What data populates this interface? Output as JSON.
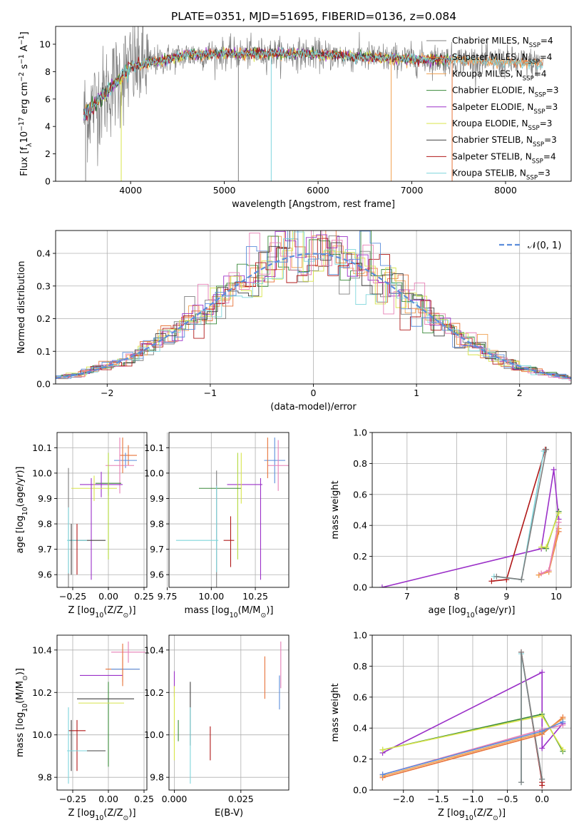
{
  "figure_title": "PLATE=0351, MJD=51695, FIBERID=0136, z=0.084",
  "chart_data": [
    {
      "id": "spectrum",
      "type": "line",
      "title": "PLATE=0351, MJD=51695, FIBERID=0136, z=0.084",
      "xlabel": "wavelength [Angstrom, rest frame]",
      "ylabel": "Flux [fλ10⁻¹⁷ erg cm⁻² s⁻¹ A⁻¹]",
      "xlim": [
        3200,
        8700
      ],
      "ylim": [
        0,
        11.3
      ],
      "xticks": [
        4000,
        5000,
        6000,
        7000,
        8000
      ],
      "yticks": [
        0,
        2,
        4,
        6,
        8,
        10
      ],
      "grid": false,
      "legend_position": "top-right",
      "series": [
        {
          "name": "Chabrier MILES, N_SSP=4",
          "color": "#7f7f7f"
        },
        {
          "name": "Salpeter MILES, N_SSP=4",
          "color": "#e8733a"
        },
        {
          "name": "Kroupa MILES, N_SSP=4",
          "color": "#f0a050"
        },
        {
          "name": "Chabrier ELODIE, N_SSP=3",
          "color": "#3a8a3a"
        },
        {
          "name": "Salpeter ELODIE, N_SSP=3",
          "color": "#9b30c8"
        },
        {
          "name": "Kroupa ELODIE, N_SSP=3",
          "color": "#d8e44a"
        },
        {
          "name": "Chabrier STELIB, N_SSP=3",
          "color": "#404040"
        },
        {
          "name": "Salpeter STELIB, N_SSP=4",
          "color": "#b01818"
        },
        {
          "name": "Kroupa STELIB, N_SSP=3",
          "color": "#7fd6dc"
        }
      ],
      "continuum": {
        "x": [
          3500,
          3700,
          3900,
          4000,
          4300,
          4600,
          4900,
          5200,
          5500,
          5800,
          6100,
          6400,
          6700,
          7000,
          7300,
          7600,
          8000,
          8400
        ],
        "y": [
          4.8,
          6.2,
          7.6,
          8.3,
          8.8,
          9.2,
          9.3,
          9.3,
          9.35,
          9.3,
          9.2,
          9.1,
          9.0,
          8.9,
          8.9,
          8.8,
          8.7,
          8.6
        ]
      }
    },
    {
      "id": "residuals",
      "type": "histogram",
      "xlabel": "(data-model)/error",
      "ylabel": "Normed distribution",
      "xlim": [
        -2.5,
        2.5
      ],
      "ylim": [
        0,
        0.47
      ],
      "xticks": [
        -2,
        -1,
        0,
        1,
        2
      ],
      "yticks": [
        0.0,
        0.1,
        0.2,
        0.3,
        0.4
      ],
      "grid": true,
      "legend_position": "top-right",
      "reference_curve": {
        "name": "𝒩(0, 1)",
        "color": "#5b8ddb",
        "style": "dashed"
      }
    },
    {
      "id": "age-vs-Z",
      "type": "errorbar",
      "xlabel": "Z [log10(Z/Z⊙)]",
      "ylabel": "age  [log10(age/yr)]",
      "xlim": [
        -0.36,
        0.27
      ],
      "ylim": [
        9.55,
        10.16
      ],
      "xticks": [
        -0.25,
        0.0,
        0.25
      ],
      "yticks": [
        9.6,
        9.7,
        9.8,
        9.9,
        10.0,
        10.1
      ],
      "grid": true,
      "points": [
        {
          "x": 0.14,
          "y": 10.07,
          "xerr": 0.06,
          "yerr": 0.04,
          "color": "#e8733a"
        },
        {
          "x": 0.12,
          "y": 10.05,
          "xerr": 0.08,
          "yerr": 0.03,
          "color": "#5b8ddb"
        },
        {
          "x": 0.08,
          "y": 10.03,
          "xerr": 0.1,
          "yerr": 0.11,
          "color": "#e67fb5"
        },
        {
          "x": 0.0,
          "y": 9.96,
          "xerr": 0.09,
          "yerr": 0.05,
          "color": "#3a8a3a"
        },
        {
          "x": -0.05,
          "y": 9.955,
          "xerr": 0.15,
          "yerr": 0.05,
          "color": "#9b30c8"
        },
        {
          "x": -0.1,
          "y": 9.94,
          "xerr": 0.16,
          "yerr": 0.05,
          "color": "#d8e44a"
        },
        {
          "x": 0.0,
          "y": 9.87,
          "xerr": 0.0,
          "yerr": 0.21,
          "color": "#b0d838"
        },
        {
          "x": -0.12,
          "y": 9.78,
          "xerr": 0.0,
          "yerr": 0.2,
          "color": "#9b30c8"
        },
        {
          "x": -0.15,
          "y": 9.735,
          "xerr": 0.13,
          "yerr": 0.0,
          "color": "#404040"
        },
        {
          "x": -0.28,
          "y": 9.78,
          "xerr": 0.0,
          "yerr": 0.24,
          "color": "#7f7f7f"
        },
        {
          "x": -0.28,
          "y": 9.735,
          "xerr": 0.0,
          "yerr": 0.13,
          "color": "#7fd6dc"
        },
        {
          "x": -0.22,
          "y": 9.735,
          "xerr": 0.07,
          "yerr": 0.0,
          "color": "#7fd6dc"
        },
        {
          "x": -0.26,
          "y": 9.7,
          "xerr": 0.0,
          "yerr": 0.1,
          "color": "#404040"
        },
        {
          "x": -0.22,
          "y": 9.7,
          "xerr": 0.0,
          "yerr": 0.1,
          "color": "#b01818"
        },
        {
          "x": 0.1,
          "y": 10.07,
          "xerr": 0.0,
          "yerr": 0.07,
          "color": "#e8733a"
        }
      ]
    },
    {
      "id": "age-vs-mass",
      "type": "errorbar",
      "xlabel": "mass [log10(M/M⊙)]",
      "ylabel": "",
      "xlim": [
        9.76,
        10.44
      ],
      "ylim": [
        9.55,
        10.16
      ],
      "xticks": [
        9.75,
        10.0,
        10.25
      ],
      "yticks": [
        9.6,
        9.7,
        9.8,
        9.9,
        10.0,
        10.1
      ],
      "grid": true,
      "points": [
        {
          "x": 10.36,
          "y": 10.05,
          "xerr": 0.06,
          "yerr": 0.09,
          "color": "#5b8ddb"
        },
        {
          "x": 10.38,
          "y": 10.03,
          "xerr": 0.06,
          "yerr": 0.1,
          "color": "#e67fb5"
        },
        {
          "x": 10.32,
          "y": 10.06,
          "xerr": 0.0,
          "yerr": 0.08,
          "color": "#e8733a"
        },
        {
          "x": 10.19,
          "y": 9.955,
          "xerr": 0.1,
          "yerr": 0.0,
          "color": "#9b30c8"
        },
        {
          "x": 10.28,
          "y": 9.78,
          "xerr": 0.0,
          "yerr": 0.2,
          "color": "#9b30c8"
        },
        {
          "x": 10.15,
          "y": 9.87,
          "xerr": 0.0,
          "yerr": 0.21,
          "color": "#b0d838"
        },
        {
          "x": 10.05,
          "y": 9.94,
          "xerr": 0.12,
          "yerr": 0.0,
          "color": "#3a8a3a"
        },
        {
          "x": 10.17,
          "y": 9.98,
          "xerr": 0.0,
          "yerr": 0.1,
          "color": "#d8e44a"
        },
        {
          "x": 10.03,
          "y": 9.78,
          "xerr": 0.0,
          "yerr": 0.23,
          "color": "#7f7f7f"
        },
        {
          "x": 10.03,
          "y": 9.78,
          "xerr": 0.0,
          "yerr": 0.17,
          "color": "#7fd6dc"
        },
        {
          "x": 9.92,
          "y": 9.735,
          "xerr": 0.12,
          "yerr": 0.0,
          "color": "#7fd6dc"
        },
        {
          "x": 10.1,
          "y": 9.735,
          "xerr": 0.03,
          "yerr": 0.0,
          "color": "#b01818"
        },
        {
          "x": 10.11,
          "y": 9.73,
          "xerr": 0.0,
          "yerr": 0.1,
          "color": "#b01818"
        }
      ]
    },
    {
      "id": "massweight-vs-age",
      "type": "line",
      "xlabel": "age  [log10(age/yr)]",
      "ylabel": "mass weight",
      "xlim": [
        6.3,
        10.3
      ],
      "ylim": [
        0,
        1.0
      ],
      "xticks": [
        7,
        8,
        9,
        10
      ],
      "yticks": [
        0.0,
        0.2,
        0.4,
        0.6,
        0.8,
        1.0
      ],
      "grid": true,
      "series": [
        {
          "color": "#9b30c8",
          "x": [
            6.5,
            9.7,
            9.95,
            10.05
          ],
          "y": [
            0.0,
            0.25,
            0.76,
            0.44
          ]
        },
        {
          "color": "#b01818",
          "x": [
            8.7,
            9.0,
            9.78
          ],
          "y": [
            0.04,
            0.05,
            0.89
          ]
        },
        {
          "color": "#7fd6dc",
          "x": [
            8.75,
            9.3,
            9.75
          ],
          "y": [
            0.07,
            0.05,
            0.88
          ]
        },
        {
          "color": "#7f7f7f",
          "x": [
            8.8,
            9.3,
            9.8
          ],
          "y": [
            0.07,
            0.05,
            0.89
          ]
        },
        {
          "color": "#3a8a3a",
          "x": [
            9.7,
            9.8,
            10.05
          ],
          "y": [
            0.26,
            0.25,
            0.49
          ]
        },
        {
          "color": "#d8e44a",
          "x": [
            9.7,
            9.8,
            10.05
          ],
          "y": [
            0.26,
            0.26,
            0.48
          ]
        },
        {
          "color": "#e8733a",
          "x": [
            9.65,
            9.85,
            10.05
          ],
          "y": [
            0.08,
            0.1,
            0.36
          ]
        },
        {
          "color": "#f0a050",
          "x": [
            9.65,
            9.85,
            10.05
          ],
          "y": [
            0.08,
            0.1,
            0.38
          ]
        },
        {
          "color": "#e67fb5",
          "x": [
            9.7,
            9.85,
            10.05
          ],
          "y": [
            0.09,
            0.11,
            0.42
          ]
        }
      ]
    },
    {
      "id": "mass-vs-Z",
      "type": "errorbar",
      "xlabel": "Z [log10(Z/Z⊙)]",
      "ylabel": "mass [log10(M/M⊙)]",
      "xlim": [
        -0.36,
        0.27
      ],
      "ylim": [
        9.74,
        10.47
      ],
      "xticks": [
        -0.25,
        0.0,
        0.25
      ],
      "yticks": [
        9.8,
        10.0,
        10.2,
        10.4
      ],
      "grid": true,
      "points": [
        {
          "x": 0.14,
          "y": 10.39,
          "xerr": 0.12,
          "yerr": 0.05,
          "color": "#e67fb5"
        },
        {
          "x": 0.1,
          "y": 10.31,
          "xerr": 0.12,
          "yerr": 0.06,
          "color": "#e8733a"
        },
        {
          "x": 0.12,
          "y": 10.31,
          "xerr": 0.1,
          "yerr": 0.0,
          "color": "#5b8ddb"
        },
        {
          "x": -0.05,
          "y": 10.28,
          "xerr": 0.15,
          "yerr": 0.0,
          "color": "#9b30c8"
        },
        {
          "x": 0.0,
          "y": 10.05,
          "xerr": 0.0,
          "yerr": 0.2,
          "color": "#3a8a3a"
        },
        {
          "x": -0.02,
          "y": 10.17,
          "xerr": 0.2,
          "yerr": 0.0,
          "color": "#404040"
        },
        {
          "x": -0.05,
          "y": 10.15,
          "xerr": 0.16,
          "yerr": 0.0,
          "color": "#d8e44a"
        },
        {
          "x": -0.22,
          "y": 10.02,
          "xerr": 0.06,
          "yerr": 0.0,
          "color": "#b01818"
        },
        {
          "x": -0.26,
          "y": 9.95,
          "xerr": 0.0,
          "yerr": 0.12,
          "color": "#404040"
        },
        {
          "x": -0.22,
          "y": 9.95,
          "xerr": 0.0,
          "yerr": 0.12,
          "color": "#b01818"
        },
        {
          "x": -0.28,
          "y": 9.95,
          "xerr": 0.0,
          "yerr": 0.18,
          "color": "#7fd6dc"
        },
        {
          "x": -0.15,
          "y": 9.925,
          "xerr": 0.13,
          "yerr": 0.0,
          "color": "#404040"
        },
        {
          "x": -0.22,
          "y": 9.925,
          "xerr": 0.07,
          "yerr": 0.0,
          "color": "#7fd6dc"
        },
        {
          "x": 0.1,
          "y": 10.33,
          "xerr": 0.0,
          "yerr": 0.1,
          "color": "#e8733a"
        }
      ]
    },
    {
      "id": "mass-vs-EBV",
      "type": "errorbar",
      "xlabel": "E(B-V)",
      "ylabel": "",
      "xlim": [
        -0.002,
        0.043
      ],
      "ylim": [
        9.74,
        10.47
      ],
      "xticks": [
        0.0,
        0.025
      ],
      "yticks": [
        9.8,
        10.0,
        10.2,
        10.4
      ],
      "grid": true,
      "points": [
        {
          "x": 0.0,
          "y": 10.24,
          "xerr": 0.0,
          "yerr": 0.06,
          "color": "#9b30c8"
        },
        {
          "x": 0.0,
          "y": 10.1,
          "xerr": 0.0,
          "yerr": 0.13,
          "color": "#d8e44a"
        },
        {
          "x": 0.0,
          "y": 9.95,
          "xerr": 0.0,
          "yerr": 0.07,
          "color": "#d8e44a"
        },
        {
          "x": 0.0015,
          "y": 10.02,
          "xerr": 0.0,
          "yerr": 0.05,
          "color": "#3a8a3a"
        },
        {
          "x": 0.006,
          "y": 10.1,
          "xerr": 0.0,
          "yerr": 0.15,
          "color": "#404040"
        },
        {
          "x": 0.006,
          "y": 9.95,
          "xerr": 0.0,
          "yerr": 0.18,
          "color": "#7fd6dc"
        },
        {
          "x": 0.0135,
          "y": 9.96,
          "xerr": 0.0,
          "yerr": 0.08,
          "color": "#b01818"
        },
        {
          "x": 0.034,
          "y": 10.27,
          "xerr": 0.0,
          "yerr": 0.1,
          "color": "#e8733a"
        },
        {
          "x": 0.04,
          "y": 10.33,
          "xerr": 0.0,
          "yerr": 0.11,
          "color": "#e67fb5"
        },
        {
          "x": 0.0395,
          "y": 10.2,
          "xerr": 0.0,
          "yerr": 0.08,
          "color": "#5b8ddb"
        }
      ]
    },
    {
      "id": "massweight-vs-Z",
      "type": "line",
      "xlabel": "Z [log10(Z/Z⊙)]",
      "ylabel": "mass weight",
      "xlim": [
        -2.45,
        0.42
      ],
      "ylim": [
        0,
        1.0
      ],
      "xticks": [
        -2.0,
        -1.5,
        -1.0,
        -0.5,
        0.0
      ],
      "yticks": [
        0.0,
        0.2,
        0.4,
        0.6,
        0.8,
        1.0
      ],
      "grid": true,
      "series": [
        {
          "color": "#9b30c8",
          "x": [
            -2.3,
            0.0,
            0.0,
            0.3
          ],
          "y": [
            0.24,
            0.76,
            0.27,
            0.43
          ]
        },
        {
          "color": "#3a8a3a",
          "x": [
            -2.3,
            0.0,
            0.3
          ],
          "y": [
            0.26,
            0.49,
            0.25
          ]
        },
        {
          "color": "#d8e44a",
          "x": [
            -2.3,
            0.0,
            0.3
          ],
          "y": [
            0.26,
            0.48,
            0.26
          ]
        },
        {
          "color": "#b01818",
          "x": [
            -0.3,
            0.0,
            0.0
          ],
          "y": [
            0.89,
            0.05,
            0.03
          ]
        },
        {
          "color": "#7fd6dc",
          "x": [
            -0.3,
            -0.3,
            0.0
          ],
          "y": [
            0.05,
            0.88,
            0.07
          ]
        },
        {
          "color": "#7f7f7f",
          "x": [
            -0.3,
            -0.3,
            0.0
          ],
          "y": [
            0.05,
            0.89,
            0.07
          ]
        },
        {
          "color": "#e8733a",
          "x": [
            -2.3,
            0.0,
            0.3
          ],
          "y": [
            0.08,
            0.36,
            0.47
          ]
        },
        {
          "color": "#f0a050",
          "x": [
            -2.3,
            0.0,
            0.3
          ],
          "y": [
            0.09,
            0.37,
            0.46
          ]
        },
        {
          "color": "#e67fb5",
          "x": [
            -2.3,
            0.0,
            0.3
          ],
          "y": [
            0.1,
            0.39,
            0.42
          ]
        },
        {
          "color": "#5b8ddb",
          "x": [
            -2.3,
            0.0,
            0.3
          ],
          "y": [
            0.1,
            0.38,
            0.44
          ]
        }
      ]
    }
  ]
}
